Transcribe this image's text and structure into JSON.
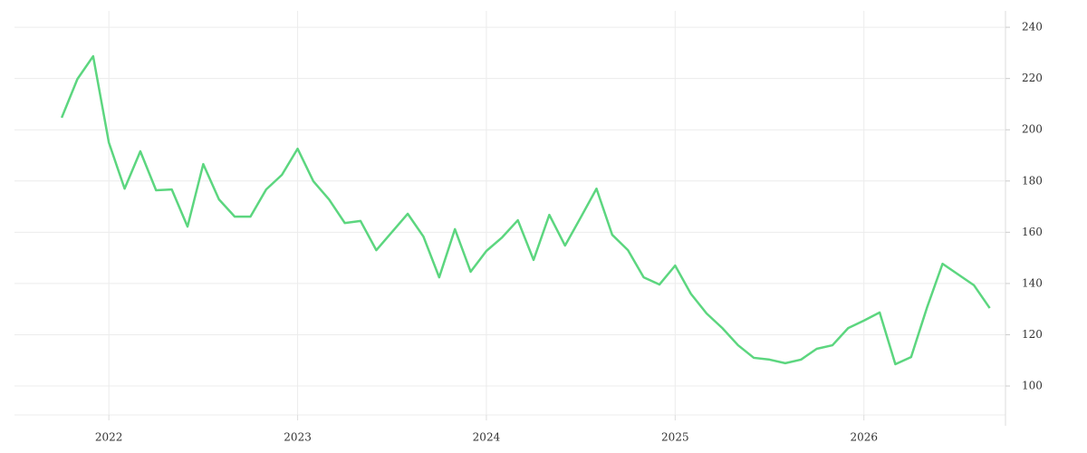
{
  "chart_data": {
    "type": "line",
    "x": [
      "2021-10",
      "2021-11",
      "2021-12",
      "2022-01",
      "2022-02",
      "2022-03",
      "2022-04",
      "2022-05",
      "2022-06",
      "2022-07",
      "2022-08",
      "2022-09",
      "2022-10",
      "2022-11",
      "2022-12",
      "2023-01",
      "2023-02",
      "2023-03",
      "2023-04",
      "2023-05",
      "2023-06",
      "2023-07",
      "2023-08",
      "2023-09",
      "2023-10",
      "2023-11",
      "2023-12",
      "2024-01",
      "2024-02",
      "2024-03",
      "2024-04",
      "2024-05",
      "2024-06",
      "2024-07",
      "2024-08",
      "2024-09",
      "2024-10",
      "2024-11",
      "2024-12",
      "2025-01",
      "2025-02",
      "2025-03",
      "2025-04",
      "2025-05",
      "2025-06",
      "2025-07",
      "2025-08",
      "2025-09",
      "2025-10",
      "2025-11",
      "2025-12",
      "2026-01",
      "2026-02",
      "2026-03",
      "2026-04",
      "2026-05",
      "2026-06",
      "2026-07",
      "2026-08",
      "2026-09"
    ],
    "values": [
      204.7,
      219.8,
      228.7,
      195,
      177,
      191.6,
      176.4,
      176.7,
      162.2,
      186.6,
      172.8,
      166.1,
      166.1,
      176.7,
      182.4,
      192.6,
      179.9,
      172.8,
      163.6,
      164.4,
      153,
      160.1,
      167.2,
      158.3,
      142.4,
      161.2,
      144.6,
      152.7,
      158,
      164.7,
      149.2,
      166.8,
      154.8,
      165.8,
      177,
      159,
      153,
      142.4,
      139.6,
      147,
      136,
      128.3,
      122.6,
      115.9,
      111,
      110.3,
      108.9,
      110.3,
      114.5,
      115.9,
      122.6,
      125.5,
      128.7,
      108.5,
      111.3,
      130.4,
      147.7,
      143.5,
      139.3,
      130.4
    ],
    "color": "#5cd67f",
    "xlim": [
      "2021-07",
      "2026-10"
    ],
    "xticks": [
      "2022",
      "2023",
      "2024",
      "2025",
      "2026"
    ],
    "ylim": [
      88.7,
      246.4
    ],
    "yticks": [
      100,
      120,
      140,
      160,
      180,
      200,
      220,
      240
    ],
    "grid": true
  }
}
